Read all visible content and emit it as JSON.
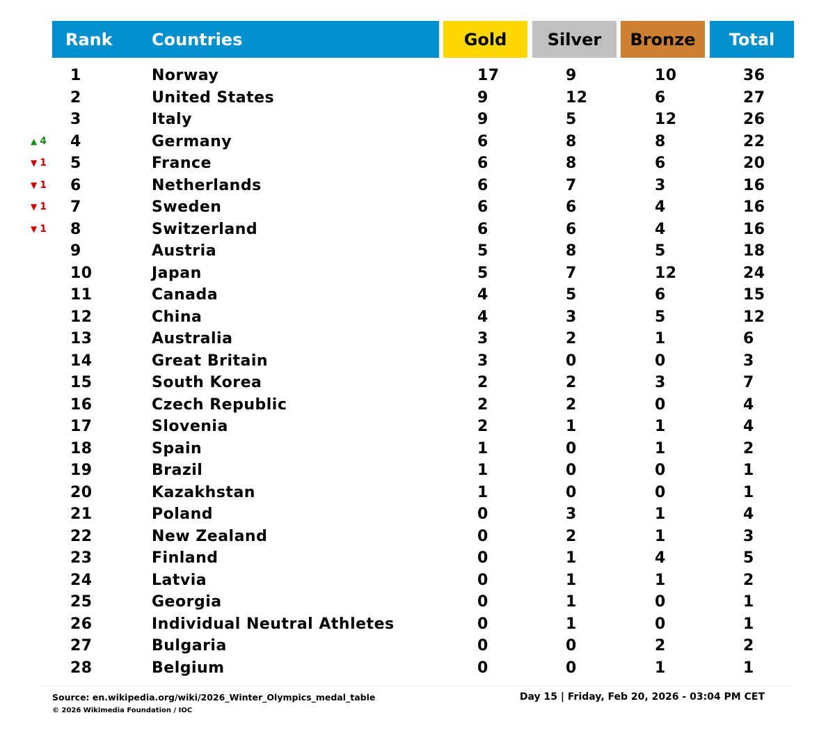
{
  "colors": {
    "header_blue": "#0090d0",
    "gold": "#ffd700",
    "silver": "#c0c0c0",
    "bronze": "#cd7f32",
    "up": "#1a8c1a",
    "down": "#cc0000"
  },
  "header": {
    "rank": "Rank",
    "countries": "Countries",
    "gold": "Gold",
    "silver": "Silver",
    "bronze": "Bronze",
    "total": "Total"
  },
  "chart_data": {
    "type": "table",
    "columns": [
      "Rank",
      "Countries",
      "Gold",
      "Silver",
      "Bronze",
      "Total"
    ],
    "rows": [
      {
        "rank": 1,
        "country": "Norway",
        "gold": 17,
        "silver": 9,
        "bronze": 10,
        "total": 36,
        "change": null
      },
      {
        "rank": 2,
        "country": "United States",
        "gold": 9,
        "silver": 12,
        "bronze": 6,
        "total": 27,
        "change": null
      },
      {
        "rank": 3,
        "country": "Italy",
        "gold": 9,
        "silver": 5,
        "bronze": 12,
        "total": 26,
        "change": null
      },
      {
        "rank": 4,
        "country": "Germany",
        "gold": 6,
        "silver": 8,
        "bronze": 8,
        "total": 22,
        "change": {
          "direction": "up",
          "amount": "4"
        }
      },
      {
        "rank": 5,
        "country": "France",
        "gold": 6,
        "silver": 8,
        "bronze": 6,
        "total": 20,
        "change": {
          "direction": "down",
          "amount": "1"
        }
      },
      {
        "rank": 6,
        "country": "Netherlands",
        "gold": 6,
        "silver": 7,
        "bronze": 3,
        "total": 16,
        "change": {
          "direction": "down",
          "amount": "1"
        }
      },
      {
        "rank": 7,
        "country": "Sweden",
        "gold": 6,
        "silver": 6,
        "bronze": 4,
        "total": 16,
        "change": {
          "direction": "down",
          "amount": "1"
        }
      },
      {
        "rank": 8,
        "country": "Switzerland",
        "gold": 6,
        "silver": 6,
        "bronze": 4,
        "total": 16,
        "change": {
          "direction": "down",
          "amount": "1"
        }
      },
      {
        "rank": 9,
        "country": "Austria",
        "gold": 5,
        "silver": 8,
        "bronze": 5,
        "total": 18,
        "change": null
      },
      {
        "rank": 10,
        "country": "Japan",
        "gold": 5,
        "silver": 7,
        "bronze": 12,
        "total": 24,
        "change": null
      },
      {
        "rank": 11,
        "country": "Canada",
        "gold": 4,
        "silver": 5,
        "bronze": 6,
        "total": 15,
        "change": null
      },
      {
        "rank": 12,
        "country": "China",
        "gold": 4,
        "silver": 3,
        "bronze": 5,
        "total": 12,
        "change": null
      },
      {
        "rank": 13,
        "country": "Australia",
        "gold": 3,
        "silver": 2,
        "bronze": 1,
        "total": 6,
        "change": null
      },
      {
        "rank": 14,
        "country": "Great Britain",
        "gold": 3,
        "silver": 0,
        "bronze": 0,
        "total": 3,
        "change": null
      },
      {
        "rank": 15,
        "country": "South Korea",
        "gold": 2,
        "silver": 2,
        "bronze": 3,
        "total": 7,
        "change": null
      },
      {
        "rank": 16,
        "country": "Czech Republic",
        "gold": 2,
        "silver": 2,
        "bronze": 0,
        "total": 4,
        "change": null
      },
      {
        "rank": 17,
        "country": "Slovenia",
        "gold": 2,
        "silver": 1,
        "bronze": 1,
        "total": 4,
        "change": null
      },
      {
        "rank": 18,
        "country": "Spain",
        "gold": 1,
        "silver": 0,
        "bronze": 1,
        "total": 2,
        "change": null
      },
      {
        "rank": 19,
        "country": "Brazil",
        "gold": 1,
        "silver": 0,
        "bronze": 0,
        "total": 1,
        "change": null
      },
      {
        "rank": 20,
        "country": "Kazakhstan",
        "gold": 1,
        "silver": 0,
        "bronze": 0,
        "total": 1,
        "change": null
      },
      {
        "rank": 21,
        "country": "Poland",
        "gold": 0,
        "silver": 3,
        "bronze": 1,
        "total": 4,
        "change": null
      },
      {
        "rank": 22,
        "country": "New Zealand",
        "gold": 0,
        "silver": 2,
        "bronze": 1,
        "total": 3,
        "change": null
      },
      {
        "rank": 23,
        "country": "Finland",
        "gold": 0,
        "silver": 1,
        "bronze": 4,
        "total": 5,
        "change": null
      },
      {
        "rank": 24,
        "country": "Latvia",
        "gold": 0,
        "silver": 1,
        "bronze": 1,
        "total": 2,
        "change": null
      },
      {
        "rank": 25,
        "country": "Georgia",
        "gold": 0,
        "silver": 1,
        "bronze": 0,
        "total": 1,
        "change": null
      },
      {
        "rank": 26,
        "country": "Individual Neutral Athletes",
        "gold": 0,
        "silver": 1,
        "bronze": 0,
        "total": 1,
        "change": null
      },
      {
        "rank": 27,
        "country": "Bulgaria",
        "gold": 0,
        "silver": 0,
        "bronze": 2,
        "total": 2,
        "change": null
      },
      {
        "rank": 28,
        "country": "Belgium",
        "gold": 0,
        "silver": 0,
        "bronze": 1,
        "total": 1,
        "change": null
      }
    ]
  },
  "footer": {
    "source": "Source: en.wikipedia.org/wiki/2026_Winter_Olympics_medal_table",
    "copyright": "© 2026 Wikimedia Foundation / IOC",
    "timestamp": "Day 15 | Friday, Feb 20, 2026 - 03:04 PM CET"
  }
}
